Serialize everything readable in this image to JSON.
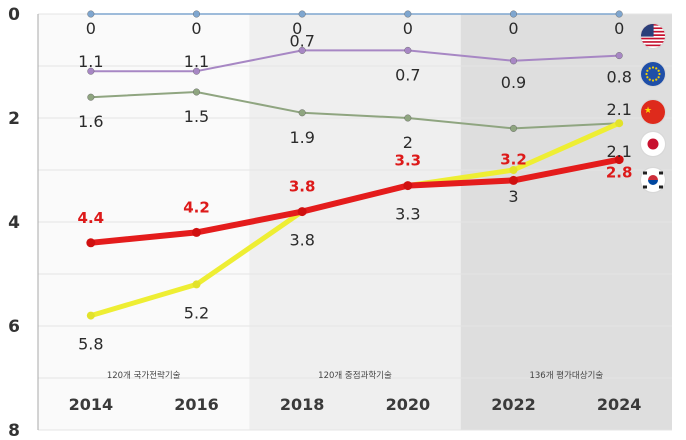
{
  "chart_data": {
    "type": "line",
    "y_axis": {
      "min": 0,
      "max": 8,
      "inverted": true,
      "ticks": [
        "0",
        "2",
        "4",
        "6",
        "8"
      ]
    },
    "categories": [
      "2014",
      "2016",
      "2018",
      "2020",
      "2022",
      "2024"
    ],
    "periods": [
      {
        "label": "120개 국가전략기술",
        "start": 0,
        "end": 1,
        "shade": "#fafafa"
      },
      {
        "label": "120개 중점과학기술",
        "start": 2,
        "end": 3,
        "shade": "#efefef"
      },
      {
        "label": "136개 평가대상기술",
        "start": 4,
        "end": 5,
        "shade": "#dedede"
      }
    ],
    "series": [
      {
        "flag": "us-flag-icon",
        "color": "#7fa6cf",
        "values": [
          0,
          0,
          0,
          0,
          0,
          0
        ],
        "labels": [
          "0",
          "0",
          "0",
          "0",
          "0",
          "0"
        ]
      },
      {
        "flag": "eu-flag-icon",
        "color": "#a787c4",
        "values": [
          1.1,
          1.1,
          0.7,
          0.7,
          0.9,
          0.8
        ],
        "labels": [
          "1.1",
          "1.1",
          "0.7",
          "0.7",
          "0.9",
          "0.8"
        ]
      },
      {
        "flag": "china-flag-icon",
        "color": "#8fa580",
        "values": [
          1.6,
          1.5,
          1.9,
          2.0,
          2.2,
          2.1
        ],
        "labels": [
          "1.6",
          "1.5",
          "1.9",
          "2",
          "",
          "2.1"
        ]
      },
      {
        "flag": "japan-flag-icon",
        "color": "#eeee33",
        "values": [
          5.8,
          5.2,
          3.8,
          3.3,
          3.0,
          2.1
        ],
        "labels": [
          "5.8",
          "5.2",
          "3.8",
          "3.3",
          "3",
          "2.1"
        ]
      },
      {
        "flag": "korea-flag-icon",
        "color": "#e41c1c",
        "values": [
          4.4,
          4.2,
          3.8,
          3.3,
          3.2,
          2.8
        ],
        "labels": [
          "4.4",
          "4.2",
          "3.8",
          "3.3",
          "3.2",
          "2.8"
        ]
      }
    ]
  }
}
